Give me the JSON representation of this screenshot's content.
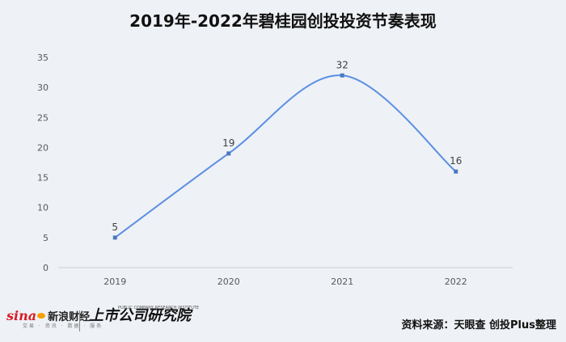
{
  "chart_data": {
    "type": "line",
    "title": "2019年-2022年碧桂园创投投资节奏表现",
    "categories": [
      "2019",
      "2020",
      "2021",
      "2022"
    ],
    "values": [
      5,
      19,
      32,
      16
    ],
    "ylim": [
      0,
      35
    ],
    "yticks": [
      0,
      5,
      10,
      15,
      20,
      25,
      30,
      35
    ],
    "smooth": true,
    "grid": false,
    "legend": "none",
    "line_color": "#5b8fe4",
    "marker_color": "#4a78c2"
  },
  "footer": {
    "source": "资料来源：天眼查 创投Plus整理",
    "logo_left_brand": "sina",
    "logo_left_name": "新浪财经",
    "logo_left_sub": "交易 · 资讯 · 数据 · 服务",
    "logo_right_name": "上市公司研究院",
    "logo_right_en": "PUBLIC COMPANY RESEARCH INSTITUTE"
  }
}
